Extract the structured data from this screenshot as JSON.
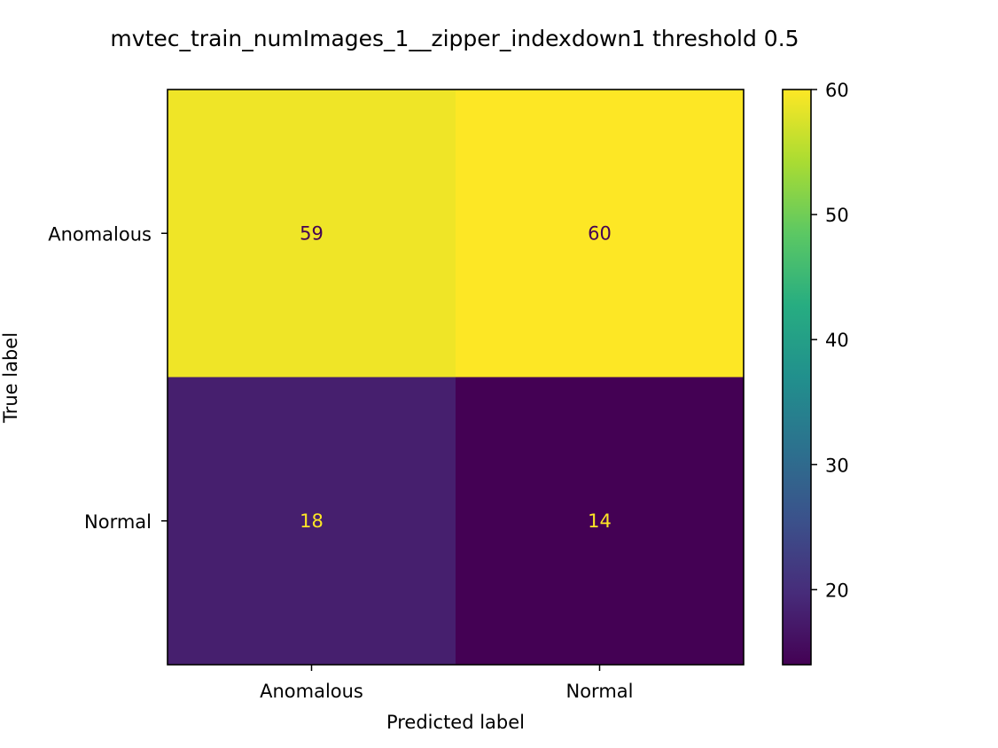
{
  "chart_data": {
    "type": "heatmap",
    "title": "mvtec_train_numImages_1__zipper_indexdown1 threshold 0.5",
    "xlabel": "Predicted label",
    "ylabel": "True label",
    "x_categories": [
      "Anomalous",
      "Normal"
    ],
    "y_categories": [
      "Anomalous",
      "Normal"
    ],
    "values": [
      [
        59,
        60
      ],
      [
        18,
        14
      ]
    ],
    "colormap": "viridis",
    "colorbar": {
      "range": [
        14,
        60
      ],
      "ticks": [
        20,
        30,
        40,
        50,
        60
      ]
    },
    "grid": false
  },
  "colors": {
    "low": "#440154",
    "high": "#fde725",
    "text_dark": "#440154",
    "text_light": "#fde725"
  }
}
